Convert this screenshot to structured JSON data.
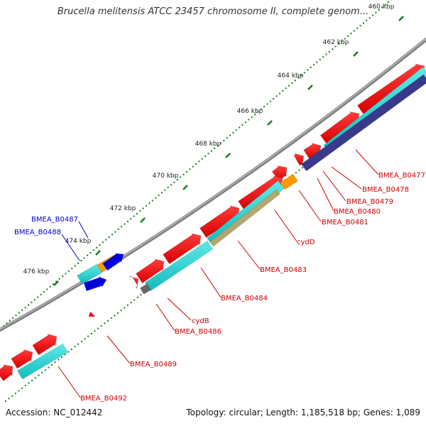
{
  "title": "Brucella melitensis ATCC 23457 chromosome II, complete genom...",
  "footer": {
    "accession": "Accession: NC_012442",
    "summary": "Topology: circular; Length: 1,185,518 bp; Genes: 1,089"
  },
  "ticks": [
    {
      "label": "460 kbp"
    },
    {
      "label": "462 kbp"
    },
    {
      "label": "464 kbp"
    },
    {
      "label": "466 kbp"
    },
    {
      "label": "468 kbp"
    },
    {
      "label": "470 kbp"
    },
    {
      "label": "472 kbp"
    },
    {
      "label": "474 kbp"
    },
    {
      "label": "476 kbp"
    }
  ],
  "gene_labels": [
    {
      "text": "BMEA_B0477",
      "color": "#cc0000"
    },
    {
      "text": "BMEA_B0478",
      "color": "#cc0000"
    },
    {
      "text": "BMEA_B0479",
      "color": "#cc0000"
    },
    {
      "text": "BMEA_B0480",
      "color": "#cc0000"
    },
    {
      "text": "BMEA_B0481",
      "color": "#cc0000"
    },
    {
      "text": "cydD",
      "color": "#cc0000"
    },
    {
      "text": "BMEA_B0483",
      "color": "#cc0000"
    },
    {
      "text": "BMEA_B0484",
      "color": "#cc0000"
    },
    {
      "text": "cydB",
      "color": "#cc0000"
    },
    {
      "text": "BMEA_B0486",
      "color": "#cc0000"
    },
    {
      "text": "BMEA_B0489",
      "color": "#cc0000"
    },
    {
      "text": "BMEA_B0492",
      "color": "#cc0000"
    },
    {
      "text": "BMEA_B0487",
      "color": "#0000cc"
    },
    {
      "text": "BMEA_B0488",
      "color": "#0000cc"
    }
  ],
  "colors": {
    "backbone": "#808080",
    "tick_marks": "#1a7a1a",
    "cds_forward": "#ee0000",
    "cds_reverse": "#0000dd",
    "blast_cyan": "#22d3d3",
    "blast_orange": "#ff9900",
    "blast_navy": "#3a3a8c",
    "blast_olive": "#b0a870"
  }
}
